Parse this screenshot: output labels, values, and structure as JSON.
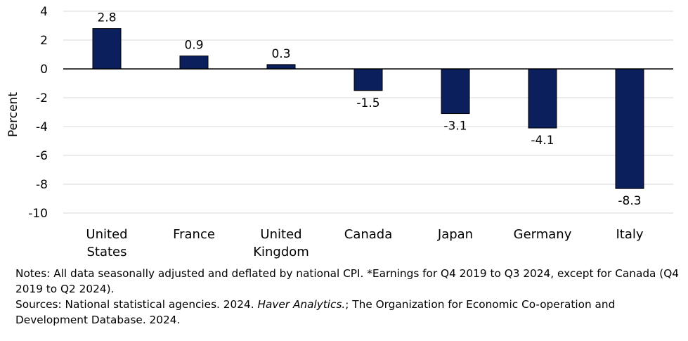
{
  "chart_data": {
    "type": "bar",
    "categories": [
      [
        "United",
        "States"
      ],
      [
        "France"
      ],
      [
        "United",
        "Kingdom"
      ],
      [
        "Canada"
      ],
      [
        "Japan"
      ],
      [
        "Germany"
      ],
      [
        "Italy"
      ]
    ],
    "values": [
      2.8,
      0.9,
      0.3,
      -1.5,
      -3.1,
      -4.1,
      -8.3
    ],
    "data_labels": [
      "2.8",
      "0.9",
      "0.3",
      "-1.5",
      "-3.1",
      "-4.1",
      "-8.3"
    ],
    "ylabel": "Percent",
    "ylim": [
      -10,
      4
    ],
    "yticks": [
      4,
      2,
      0,
      -2,
      -4,
      -6,
      -8,
      -10
    ],
    "grid": true,
    "bar_color": "#0b1f5c",
    "grid_color": "#d9d9d9"
  },
  "notes": {
    "notes_text": "Notes: All data seasonally adjusted and deflated by national CPI. *Earnings for Q4 2019 to Q3 2024, except for Canada (Q4 2019 to Q2 2024).",
    "sources_prefix": "Sources: National statistical agencies. 2024. ",
    "sources_italic": "Haver Analytics.",
    "sources_suffix": "; The Organization for Economic Co-operation and Development Database. 2024."
  }
}
